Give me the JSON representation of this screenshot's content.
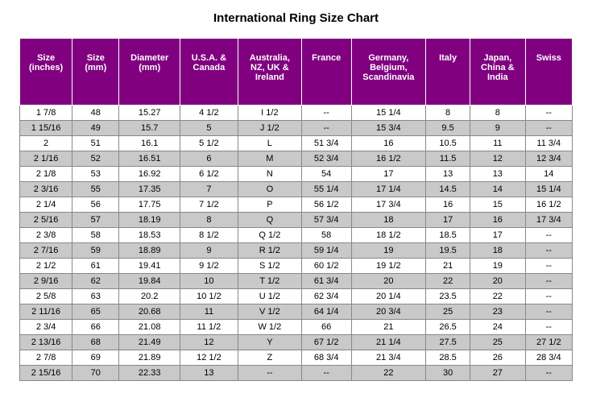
{
  "title": "International Ring Size Chart",
  "header_bg": "#800080",
  "header_fg": "#ffffff",
  "zebra_bg": "#c9c9c9",
  "columns": [
    "Size (inches)",
    "Size (mm)",
    "Diameter (mm)",
    "U.S.A. & Canada",
    "Australia, NZ, UK & Ireland",
    "France",
    "Germany, Belgium, Scandinavia",
    "Italy",
    "Japan, China & India",
    "Swiss"
  ],
  "col_widths": [
    "9.5%",
    "8.5%",
    "11%",
    "10.5%",
    "11.5%",
    "9%",
    "13.5%",
    "8%",
    "10%",
    "8.5%"
  ],
  "rows": [
    [
      "1  7/8",
      "48",
      "15.27",
      "4  1/2",
      "I  1/2",
      "--",
      "15 1/4",
      "8",
      "8",
      "--"
    ],
    [
      "1 15/16",
      "49",
      "15.7",
      "5",
      "J  1/2",
      "--",
      "15 3/4",
      "9.5",
      "9",
      "--"
    ],
    [
      "2",
      "51",
      "16.1",
      "5  1/2",
      "L",
      "51 3/4",
      "16",
      "10.5",
      "11",
      "11 3/4"
    ],
    [
      "2  1/16",
      "52",
      "16.51",
      "6",
      "M",
      "52 3/4",
      "16 1/2",
      "11.5",
      "12",
      "12 3/4"
    ],
    [
      "2  1/8",
      "53",
      "16.92",
      "6  1/2",
      "N",
      "54",
      "17",
      "13",
      "13",
      "14"
    ],
    [
      "2  3/16",
      "55",
      "17.35",
      "7",
      "O",
      "55 1/4",
      "17 1/4",
      "14.5",
      "14",
      "15 1/4"
    ],
    [
      "2  1/4",
      "56",
      "17.75",
      "7  1/2",
      "P",
      "56 1/2",
      "17 3/4",
      "16",
      "15",
      "16 1/2"
    ],
    [
      "2  5/16",
      "57",
      "18.19",
      "8",
      "Q",
      "57 3/4",
      "18",
      "17",
      "16",
      "17 3/4"
    ],
    [
      "2  3/8",
      "58",
      "18.53",
      "8  1/2",
      "Q  1/2",
      "58",
      "18 1/2",
      "18.5",
      "17",
      "--"
    ],
    [
      "2  7/16",
      "59",
      "18.89",
      "9",
      "R  1/2",
      "59 1/4",
      "19",
      "19.5",
      "18",
      "--"
    ],
    [
      "2  1/2",
      "61",
      "19.41",
      "9  1/2",
      "S  1/2",
      "60 1/2",
      "19 1/2",
      "21",
      "19",
      "--"
    ],
    [
      "2  9/16",
      "62",
      "19.84",
      "10",
      "T  1/2",
      "61 3/4",
      "20",
      "22",
      "20",
      "--"
    ],
    [
      "2  5/8",
      "63",
      "20.2",
      "10 1/2",
      "U  1/2",
      "62 3/4",
      "20 1/4",
      "23.5",
      "22",
      "--"
    ],
    [
      "2 11/16",
      "65",
      "20.68",
      "11",
      "V  1/2",
      "64 1/4",
      "20 3/4",
      "25",
      "23",
      "--"
    ],
    [
      "2  3/4",
      "66",
      "21.08",
      "11 1/2",
      "W  1/2",
      "66",
      "21",
      "26.5",
      "24",
      "--"
    ],
    [
      "2 13/16",
      "68",
      "21.49",
      "12",
      "Y",
      "67 1/2",
      "21 1/4",
      "27.5",
      "25",
      "27 1/2"
    ],
    [
      "2  7/8",
      "69",
      "21.89",
      "12 1/2",
      "Z",
      "68 3/4",
      "21 3/4",
      "28.5",
      "26",
      "28 3/4"
    ],
    [
      "2 15/16",
      "70",
      "22.33",
      "13",
      "--",
      "--",
      "22",
      "30",
      "27",
      "--"
    ]
  ]
}
